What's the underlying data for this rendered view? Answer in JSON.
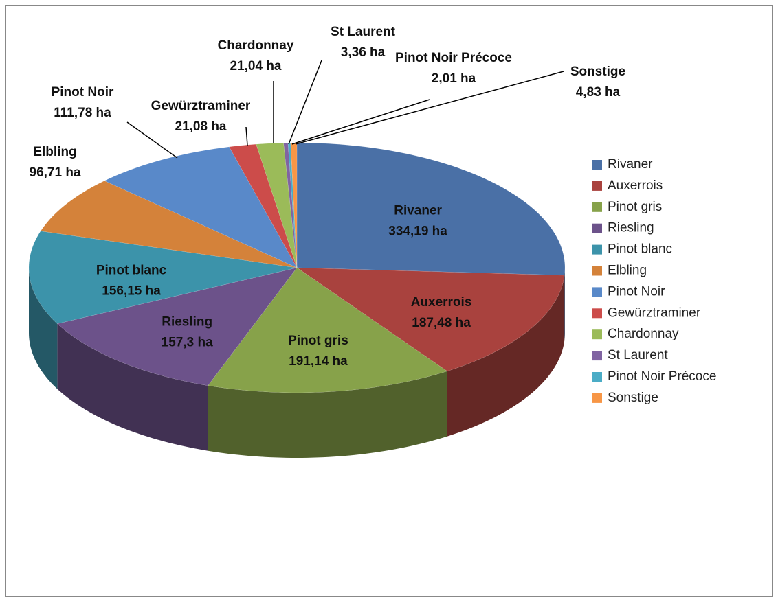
{
  "chart_data": {
    "type": "pie",
    "categories": [
      "Rivaner",
      "Auxerrois",
      "Pinot gris",
      "Riesling",
      "Pinot blanc",
      "Elbling",
      "Pinot Noir",
      "Gewürztraminer",
      "Chardonnay",
      "St Laurent",
      "Pinot Noir Précoce",
      "Sonstige"
    ],
    "values": [
      334.19,
      187.48,
      191.14,
      157.3,
      156.15,
      96.71,
      111.78,
      21.08,
      21.04,
      3.36,
      2.01,
      4.83
    ],
    "value_labels": [
      "334,19 ha",
      "187,48 ha",
      "191,14 ha",
      "157,3 ha",
      "156,15 ha",
      "96,71 ha",
      "111,78 ha",
      "21,08 ha",
      "21,04 ha",
      "3,36 ha",
      "2,01 ha",
      "4,83 ha"
    ],
    "colors": [
      "#4a70a6",
      "#a9423e",
      "#87a24a",
      "#6c528a",
      "#3c93aa",
      "#d4823a",
      "#5989c9",
      "#cc4c4a",
      "#9bbb59",
      "#8064a2",
      "#4bacc6",
      "#f79646"
    ],
    "legend": "right"
  }
}
